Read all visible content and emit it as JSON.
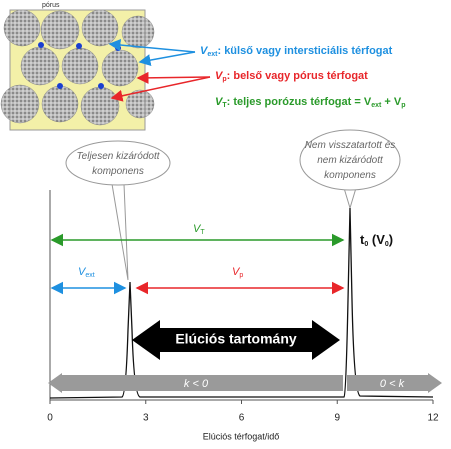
{
  "inset": {
    "pore_label": "pórus"
  },
  "legend": {
    "ext": {
      "symbol": "V",
      "subscript": "ext",
      "text": ": külső vagy intersticiális térfogat"
    },
    "p": {
      "symbol": "V",
      "subscript": "p",
      "text": ": belső vagy pórus térfogat"
    },
    "t": {
      "symbol": "V",
      "subscript": "T",
      "text": ": teljes porózus térfogat = V",
      "subscript2": "ext",
      "text2": " + V",
      "subscript3": "p"
    }
  },
  "callouts": {
    "left": [
      "Teljesen kizáródott",
      "komponens"
    ],
    "right": [
      "Nem visszatartott és",
      "nem kizáródott",
      "komponens"
    ]
  },
  "arrows": {
    "vt": {
      "symbol": "V",
      "subscript": "T"
    },
    "vext": {
      "symbol": "V",
      "subscript": "ext"
    },
    "vp": {
      "symbol": "V",
      "subscript": "p"
    },
    "range": "Elúciós tartomány",
    "t0": {
      "symbol": "t",
      "subscript": "0",
      "text": " (V",
      "subscript2": "0",
      "text2": ")"
    },
    "k_left": "k < 0",
    "k_right": "0 < k"
  },
  "axis": {
    "xlim": [
      0,
      12
    ],
    "xticks": [
      0,
      3,
      6,
      9,
      12
    ],
    "xlabel": "Elúciós térfogat/idő"
  }
}
